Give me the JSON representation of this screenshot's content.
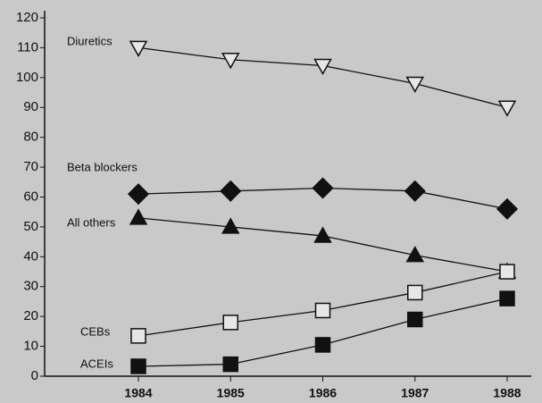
{
  "chart_data": {
    "type": "line",
    "categories": [
      "1984",
      "1985",
      "1986",
      "1987",
      "1988"
    ],
    "ylim": [
      0,
      120
    ],
    "yticks": [
      0,
      10,
      20,
      30,
      40,
      50,
      60,
      70,
      80,
      90,
      100,
      110,
      120
    ],
    "series": [
      {
        "name": "Diuretics",
        "color": "#111111",
        "marker": "triangle-down-open",
        "values": [
          110,
          106,
          104,
          98,
          90
        ]
      },
      {
        "name": "Beta blockers",
        "color": "#111111",
        "marker": "diamond-filled",
        "values": [
          61,
          62,
          63,
          62,
          56
        ]
      },
      {
        "name": "All others",
        "color": "#111111",
        "marker": "triangle-up-filled",
        "values": [
          53,
          50,
          47,
          40.5,
          35
        ]
      },
      {
        "name": "CEBs",
        "color": "#111111",
        "marker": "square-open",
        "values": [
          13.5,
          18,
          22,
          28,
          35
        ]
      },
      {
        "name": "ACEIs",
        "color": "#111111",
        "marker": "square-filled",
        "values": [
          3.3,
          4,
          10.5,
          19,
          26
        ]
      }
    ]
  }
}
